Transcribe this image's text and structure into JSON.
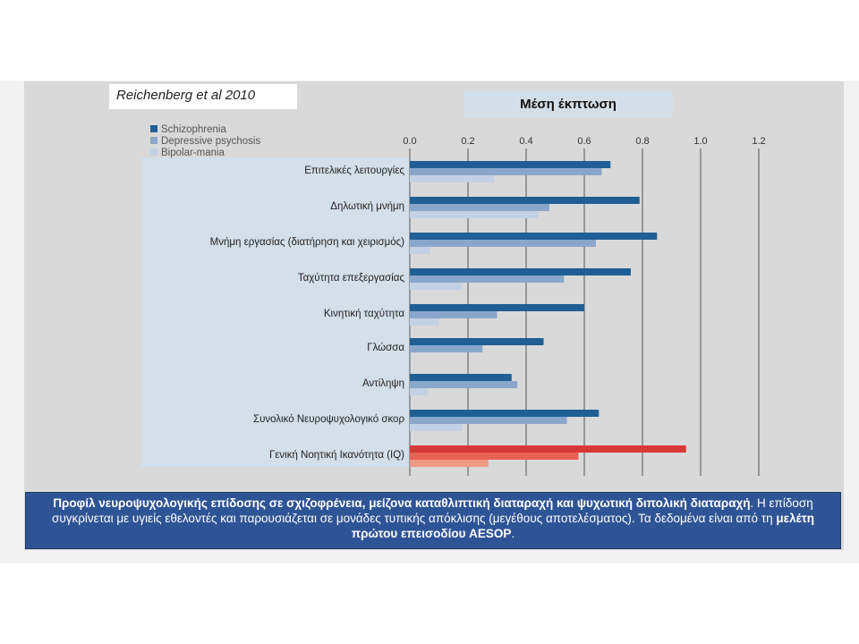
{
  "source": "Reichenberg et al 2010",
  "chart_data": {
    "type": "bar",
    "orientation": "horizontal",
    "title": "Μέση έκπτωση",
    "xlim": [
      0,
      1.2
    ],
    "xticks": [
      "0.0",
      "0.2",
      "0.4",
      "0.6",
      "0.8",
      "1.0",
      "1.2"
    ],
    "grid": true,
    "legend_position": "top-left",
    "categories": [
      "Επιτελικές λειτουργίες",
      "Δηλωτική μνήμη",
      "Μνήμη εργασίας (διατήρηση και χειρισμός)",
      "Ταχύτητα επεξεργασίας",
      "Κινητική ταχύτητα",
      "Γλώσσα",
      "Αντίληψη",
      "Συνολικό Νευροψυχολογικό σκορ",
      "Γενική Νοητική Ικανότητα (IQ)"
    ],
    "series": [
      {
        "name": "Schizophrenia",
        "color": "#1f5f96",
        "highlight_color": "#d93838",
        "values": [
          0.69,
          0.79,
          0.85,
          0.76,
          0.6,
          0.46,
          0.35,
          0.65,
          0.95
        ]
      },
      {
        "name": "Depressive psychosis",
        "color": "#8aa7cb",
        "highlight_color": "#e86255",
        "values": [
          0.66,
          0.48,
          0.64,
          0.53,
          0.3,
          0.25,
          0.37,
          0.54,
          0.58
        ]
      },
      {
        "name": "Bipolar-mania",
        "color": "#c3d1e4",
        "highlight_color": "#f09a84",
        "values": [
          0.29,
          0.44,
          0.07,
          0.18,
          0.1,
          null,
          0.06,
          0.18,
          0.27
        ]
      }
    ],
    "highlight_category_index": 8
  },
  "caption": {
    "bold1": "Προφίλ νευροψυχολογικής επίδοσης σε σχιζοφρένεια, μείζονα καταθλιπτική διαταραχή και ψυχωτική διπολική διαταραχή",
    "text1": ". Η επίδοση συγκρίνεται με υγιείς εθελοντές και παρουσιάζεται σε μονάδες τυπικής απόκλισης (μεγέθους αποτελέσματος). Τα δεδομένα είναι από τη ",
    "bold2": "μελέτη πρώτου επεισοδίου AESOP",
    "text2": "."
  }
}
